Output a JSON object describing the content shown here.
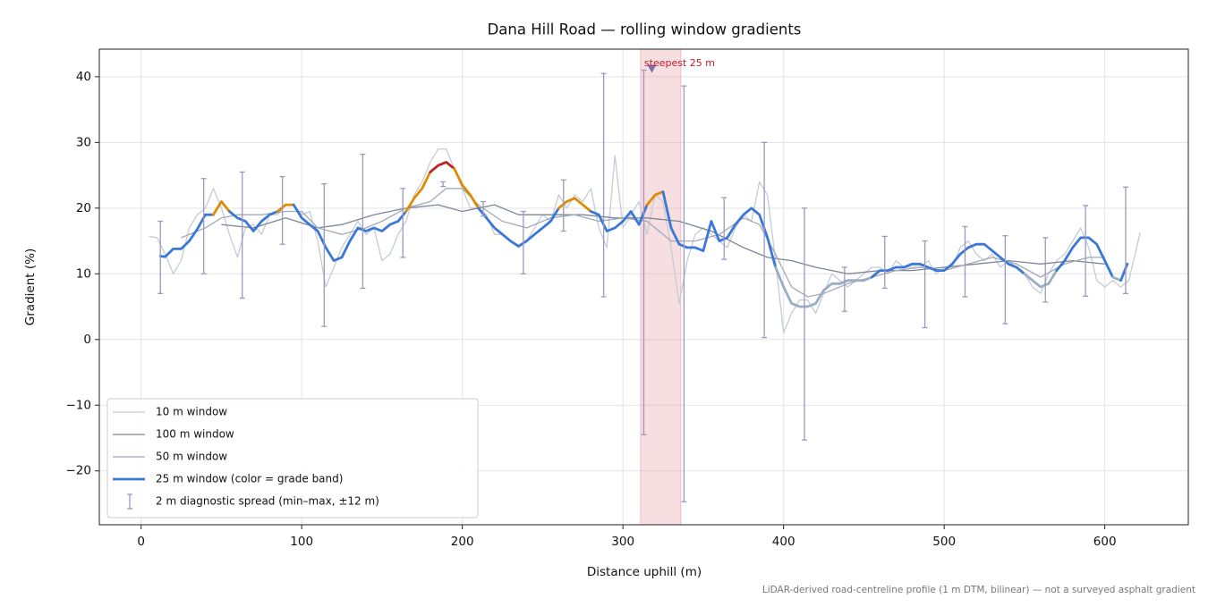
{
  "chart_data": {
    "type": "line",
    "title": "Dana Hill Road — rolling window gradients",
    "x_label": "Distance uphill (m)",
    "y_label": "Gradient (%)",
    "footnote": "LiDAR-derived road-centreline profile (1 m DTM, bilinear) — not a surveyed asphalt gradient",
    "xlim": [
      -26,
      652
    ],
    "ylim": [
      -28.2,
      44.2
    ],
    "xticks": [
      0,
      100,
      200,
      300,
      400,
      500,
      600
    ],
    "yticks": [
      {
        "value": -20,
        "label": "−20"
      },
      {
        "value": -10,
        "label": "−10"
      },
      0,
      10,
      20,
      30,
      40
    ],
    "grid": true,
    "legend": "lower left",
    "series": [
      {
        "name": "10 m window",
        "color": "#c5ccd6",
        "width": 1.3,
        "x": [
          5,
          10,
          15,
          20,
          25,
          30,
          35,
          40,
          45,
          50,
          55,
          60,
          65,
          70,
          75,
          80,
          85,
          90,
          95,
          100,
          105,
          110,
          115,
          120,
          125,
          130,
          135,
          140,
          145,
          150,
          155,
          160,
          165,
          170,
          175,
          180,
          185,
          190,
          195,
          200,
          205,
          210,
          215,
          220,
          225,
          230,
          235,
          240,
          245,
          250,
          255,
          260,
          265,
          270,
          275,
          280,
          285,
          290,
          295,
          300,
          305,
          310,
          315,
          320,
          325,
          330,
          335,
          340,
          345,
          350,
          355,
          360,
          365,
          370,
          375,
          380,
          385,
          390,
          395,
          400,
          405,
          410,
          415,
          420,
          425,
          430,
          435,
          440,
          445,
          450,
          455,
          460,
          465,
          470,
          475,
          480,
          485,
          490,
          495,
          500,
          505,
          510,
          515,
          520,
          525,
          530,
          535,
          540,
          545,
          550,
          555,
          560,
          565,
          570,
          575,
          580,
          585,
          590,
          595,
          600,
          605,
          610,
          615,
          622
        ],
        "values": [
          15.7,
          15.5,
          13,
          10,
          12,
          17,
          19,
          20,
          23,
          20,
          16,
          12.5,
          17,
          17.5,
          16,
          19,
          19,
          20.5,
          20.5,
          19,
          19.5,
          15,
          8,
          11,
          14,
          16,
          18,
          16,
          17,
          12,
          13,
          16,
          18,
          22,
          24,
          27,
          29,
          29,
          26,
          23,
          20,
          20,
          19,
          16,
          16,
          15,
          14,
          15,
          17,
          19,
          18,
          22,
          20,
          22,
          21,
          23,
          17,
          14,
          28,
          17,
          19,
          21,
          16,
          22,
          21,
          14,
          5.5,
          12,
          16,
          17,
          16,
          15,
          14,
          17,
          19,
          18,
          24,
          22,
          12,
          1,
          4,
          6,
          6,
          4,
          7,
          10,
          9,
          8,
          9,
          10,
          11,
          11,
          10,
          12,
          11,
          11,
          11,
          12,
          10,
          11,
          11,
          14,
          15,
          13,
          12,
          13,
          11,
          12,
          11,
          10,
          8,
          7,
          10,
          12,
          13,
          15,
          17,
          14,
          9,
          8,
          9,
          8,
          9,
          16.3
        ]
      },
      {
        "name": "100 m window",
        "color": "#7d8696",
        "width": 1.3,
        "x": [
          50,
          70,
          90,
          110,
          125,
          145,
          165,
          185,
          200,
          220,
          235,
          255,
          275,
          295,
          315,
          335,
          355,
          375,
          390,
          405,
          420,
          440,
          460,
          480,
          500,
          520,
          540,
          560,
          580,
          600
        ],
        "values": [
          17.5,
          17,
          18.5,
          17,
          17.5,
          19,
          20,
          20.5,
          19.5,
          20.5,
          19,
          19,
          19,
          18.5,
          18.5,
          18,
          16.5,
          14,
          12.5,
          12,
          11,
          10,
          10.5,
          10.5,
          11,
          11.5,
          12,
          11.5,
          12,
          11.5
        ]
      },
      {
        "name": "50 m window",
        "color": "#a2aab8",
        "width": 1.3,
        "x": [
          25,
          40,
          50,
          60,
          75,
          90,
          100,
          110,
          125,
          140,
          150,
          165,
          180,
          190,
          200,
          210,
          225,
          240,
          255,
          270,
          285,
          300,
          315,
          330,
          345,
          360,
          375,
          385,
          395,
          405,
          415,
          425,
          440,
          455,
          470,
          485,
          500,
          515,
          530,
          545,
          560,
          575,
          590,
          600
        ],
        "values": [
          15.5,
          17,
          18.5,
          19,
          19,
          19.5,
          19.5,
          17,
          16,
          17,
          18,
          20,
          21,
          23,
          23,
          20.5,
          18,
          17,
          18.5,
          19,
          18,
          18.5,
          18,
          15,
          15,
          16,
          18.5,
          17.5,
          13,
          8,
          6.5,
          7,
          8.5,
          9.5,
          10.5,
          11,
          10.5,
          11.5,
          12.5,
          11.5,
          9.5,
          11.5,
          12.5,
          12.5
        ]
      },
      {
        "name": "25 m window (color = grade band)",
        "color": "#3a78d8",
        "width": 2.8,
        "band_thresholds": [
          10,
          20,
          25
        ],
        "band_colors": [
          "#9aadc2",
          "#3a78d8",
          "#e08a00",
          "#c0202a"
        ],
        "x": [
          12,
          15,
          20,
          25,
          30,
          35,
          40,
          45,
          50,
          55,
          60,
          65,
          70,
          75,
          80,
          85,
          90,
          95,
          100,
          105,
          110,
          115,
          120,
          125,
          130,
          135,
          140,
          145,
          150,
          155,
          160,
          165,
          170,
          175,
          180,
          185,
          190,
          195,
          200,
          205,
          210,
          215,
          220,
          225,
          230,
          235,
          240,
          245,
          250,
          255,
          260,
          265,
          270,
          275,
          280,
          285,
          290,
          295,
          300,
          305,
          310,
          315,
          320,
          325,
          330,
          335,
          340,
          345,
          350,
          355,
          360,
          365,
          370,
          375,
          380,
          385,
          390,
          395,
          400,
          405,
          410,
          415,
          420,
          425,
          430,
          435,
          440,
          445,
          450,
          455,
          460,
          465,
          470,
          475,
          480,
          485,
          490,
          495,
          500,
          505,
          510,
          515,
          520,
          525,
          530,
          535,
          540,
          545,
          550,
          555,
          560,
          565,
          570,
          575,
          580,
          585,
          590,
          595,
          600,
          605,
          610,
          614
        ],
        "values": [
          12.7,
          12.6,
          13.8,
          13.8,
          15,
          16.8,
          19,
          19,
          21,
          19.5,
          18.5,
          18,
          16.5,
          18,
          19,
          19.5,
          20.5,
          20.5,
          18.5,
          17.5,
          16.5,
          14,
          12,
          12.5,
          15,
          17,
          16.5,
          17,
          16.5,
          17.5,
          18,
          19.5,
          21.5,
          23,
          25.5,
          26.5,
          27,
          26,
          23.5,
          22,
          20,
          18.5,
          17,
          16,
          15,
          14.2,
          15,
          16,
          17,
          18,
          20,
          21,
          21.5,
          20.5,
          19.5,
          19,
          16.5,
          17,
          18,
          19.5,
          17.5,
          20.5,
          22,
          22.5,
          17,
          14.5,
          14,
          14,
          13.5,
          18,
          15,
          15.5,
          17.5,
          19,
          20,
          19,
          15.5,
          11,
          8,
          5.5,
          5,
          5,
          5.5,
          7.5,
          8.5,
          8.5,
          9,
          9,
          9,
          9.5,
          10.5,
          10.5,
          11,
          11,
          11.5,
          11.5,
          11,
          10.5,
          10.5,
          11.5,
          13,
          14,
          14.5,
          14.5,
          13.5,
          12.5,
          11.5,
          11,
          10,
          9,
          8,
          8.5,
          10.5,
          12,
          14,
          15.5,
          15.5,
          14.5,
          12,
          9.5,
          9,
          11.5
        ]
      }
    ],
    "errorbars": {
      "name": "2 m diagnostic spread (min–max, ±12 m)",
      "color": "#9d98bf",
      "x": [
        12,
        39,
        63,
        88,
        114,
        138,
        163,
        188,
        213,
        238,
        263,
        288,
        313,
        338,
        363,
        388,
        413,
        438,
        463,
        488,
        513,
        538,
        563,
        588,
        613
      ],
      "low": [
        7,
        10,
        6.3,
        14.5,
        2,
        7.8,
        12.5,
        23.3,
        18.8,
        10,
        16.5,
        6.5,
        -14.5,
        -24.7,
        12.2,
        0.3,
        -15.3,
        4.3,
        7.8,
        1.8,
        6.5,
        2.4,
        5.7,
        6.6,
        7
      ],
      "high": [
        18,
        24.5,
        25.5,
        24.8,
        23.7,
        28.2,
        23,
        24,
        21,
        19.5,
        24.3,
        40.5,
        41,
        38.6,
        21.6,
        30,
        20,
        11,
        15.7,
        15,
        17.2,
        15.8,
        15.5,
        20.4,
        23.2
      ]
    },
    "highlight": {
      "x": [
        311,
        336
      ],
      "color": "#e8a0a8",
      "label": "steepest 25 m",
      "label_color": "#c0202a",
      "point": [
        318,
        41
      ],
      "point_color": "#7a6fa8"
    }
  }
}
